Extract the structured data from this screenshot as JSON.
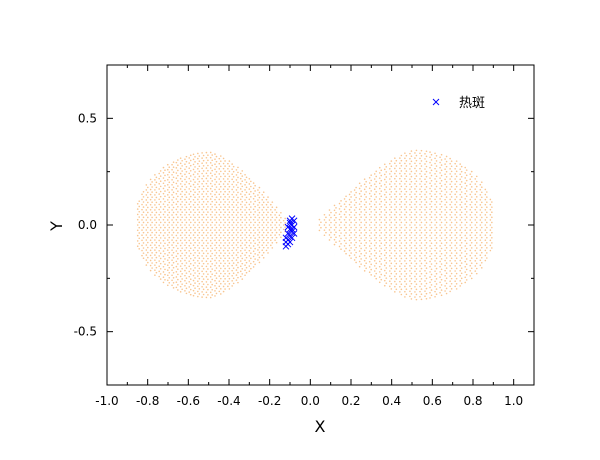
{
  "chart_data": {
    "type": "scatter",
    "title": "",
    "xlabel": "X",
    "ylabel": "Y",
    "xlim": [
      -1.0,
      1.1
    ],
    "ylim": [
      -0.75,
      0.75
    ],
    "x_ticks": [
      "-1.0",
      "-0.8",
      "-0.6",
      "-0.4",
      "-0.2",
      "0.0",
      "0.2",
      "0.4",
      "0.6",
      "0.8",
      "1.0"
    ],
    "x_tick_values": [
      -1.0,
      -0.8,
      -0.6,
      -0.4,
      -0.2,
      0.0,
      0.2,
      0.4,
      0.6,
      0.8,
      1.0
    ],
    "y_ticks": [
      "-0.5",
      "0.0",
      "0.5"
    ],
    "y_tick_values": [
      -0.5,
      0.0,
      0.5
    ],
    "grid": false,
    "legend_position": "top-right",
    "legend": [
      {
        "label": "热斑",
        "marker": "x",
        "color": "#0000ff"
      }
    ],
    "series": [
      {
        "marker": "dot",
        "color": "#f5b26b",
        "lobes": [
          {
            "center_x": -0.49,
            "x_range": [
              -0.87,
              -0.11
            ],
            "y_range": [
              -0.34,
              0.34
            ],
            "inner_edge": "right"
          },
          {
            "center_x": 0.5,
            "x_range": [
              0.02,
              0.91
            ],
            "y_range": [
              -0.35,
              0.35
            ],
            "inner_edge": "left"
          }
        ]
      },
      {
        "name": "热斑",
        "marker": "x",
        "color": "#0000ff",
        "points": [
          [
            -0.09,
            0.03
          ],
          [
            -0.08,
            0.02
          ],
          [
            -0.1,
            0.01
          ],
          [
            -0.09,
            0.0
          ],
          [
            -0.08,
            -0.01
          ],
          [
            -0.1,
            -0.02
          ],
          [
            -0.09,
            -0.03
          ],
          [
            -0.11,
            -0.04
          ],
          [
            -0.1,
            -0.05
          ],
          [
            -0.12,
            -0.06
          ],
          [
            -0.11,
            -0.07
          ],
          [
            -0.12,
            -0.08
          ],
          [
            -0.11,
            -0.09
          ],
          [
            -0.12,
            -0.1
          ],
          [
            -0.09,
            -0.06
          ],
          [
            -0.08,
            -0.04
          ],
          [
            -0.1,
            -0.08
          ],
          [
            -0.09,
            -0.02
          ],
          [
            -0.11,
            -0.01
          ],
          [
            -0.1,
            0.02
          ]
        ]
      }
    ]
  }
}
